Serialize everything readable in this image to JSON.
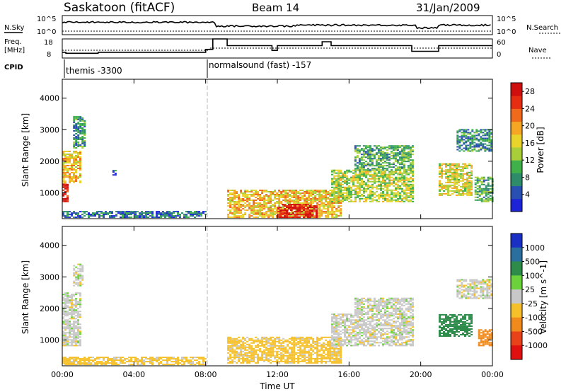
{
  "header": {
    "station": "Saskatoon (fitACF)",
    "beam": "Beam 14",
    "date": "31/Jan/2009"
  },
  "strip_panels": {
    "nsky": {
      "label": "N.Sky",
      "ticks": [
        "10^5",
        "10^0"
      ]
    },
    "nsearch": {
      "label": "N.Search",
      "ticks": [
        "10^5",
        "10^0"
      ]
    },
    "freq": {
      "label_line1": "Freq.",
      "label_line2": "[MHz]",
      "ticks": [
        "18",
        "8"
      ]
    },
    "nave": {
      "label": "Nave",
      "ticks": [
        "60",
        "0"
      ]
    },
    "cpid": {
      "label": "CPID",
      "segments": [
        {
          "start_hour": 0,
          "text": "themis -3300"
        },
        {
          "start_hour": 8,
          "text": "normalsound (fast) -157"
        }
      ]
    }
  },
  "chart_data": [
    {
      "type": "heatmap",
      "title": "",
      "xlabel": "",
      "ylabel": "Slant Range [km]",
      "x_ticks": [
        "00:00",
        "04:00",
        "08:00",
        "12:00",
        "16:00",
        "20:00",
        "00:00"
      ],
      "xlim_hours": [
        0,
        24
      ],
      "y_ticks": [
        1000,
        2000,
        3000,
        4000
      ],
      "ylim": [
        180,
        4600
      ],
      "colorbar": {
        "label": "Power [dB]",
        "ticks": [
          4,
          8,
          12,
          16,
          20,
          24,
          28
        ],
        "range": [
          0,
          30
        ],
        "colors": [
          "#1d24d8",
          "#2a4fb3",
          "#2e8c6a",
          "#3fb04a",
          "#a8cf3a",
          "#e8d42a",
          "#f5a623",
          "#ef6a1a",
          "#e52d12",
          "#cf0e0e"
        ]
      },
      "regions": [
        {
          "t0": 0.0,
          "t1": 0.3,
          "r0": 700,
          "r1": 1300,
          "v": 28
        },
        {
          "t0": 0.0,
          "t1": 1.0,
          "r0": 1300,
          "r1": 2300,
          "v": 18
        },
        {
          "t0": 0.6,
          "t1": 1.2,
          "r0": 2400,
          "r1": 3400,
          "v": 8
        },
        {
          "t0": 0.0,
          "t1": 8.0,
          "r0": 200,
          "r1": 400,
          "v": 6
        },
        {
          "t0": 2.8,
          "t1": 3.0,
          "r0": 1500,
          "r1": 1700,
          "v": 6
        },
        {
          "t0": 9.2,
          "t1": 15.5,
          "r0": 200,
          "r1": 1100,
          "v": 18
        },
        {
          "t0": 12.0,
          "t1": 14.2,
          "r0": 200,
          "r1": 650,
          "v": 28
        },
        {
          "t0": 15.0,
          "t1": 19.6,
          "r0": 700,
          "r1": 1700,
          "v": 14
        },
        {
          "t0": 16.3,
          "t1": 19.6,
          "r0": 1700,
          "r1": 2500,
          "v": 10
        },
        {
          "t0": 21.0,
          "t1": 22.8,
          "r0": 900,
          "r1": 1900,
          "v": 16
        },
        {
          "t0": 22.0,
          "t1": 24.0,
          "r0": 2300,
          "r1": 3000,
          "v": 8
        },
        {
          "t0": 23.0,
          "t1": 24.0,
          "r0": 700,
          "r1": 1500,
          "v": 10
        }
      ]
    },
    {
      "type": "heatmap",
      "title": "",
      "xlabel": "Time UT",
      "ylabel": "Slant Range [km]",
      "x_ticks": [
        "00:00",
        "04:00",
        "08:00",
        "12:00",
        "16:00",
        "20:00",
        "00:00"
      ],
      "xlim_hours": [
        0,
        24
      ],
      "y_ticks": [
        1000,
        2000,
        3000,
        4000
      ],
      "ylim": [
        180,
        4600
      ],
      "colorbar": {
        "label": "Velocity [m s^-1]",
        "ticks": [
          1000,
          500,
          100,
          25,
          -25,
          -100,
          -500,
          -1000
        ],
        "bands": [
          {
            "color": "#1a2fc4",
            "value": 1000
          },
          {
            "color": "#2b6f9e",
            "value": 700
          },
          {
            "color": "#2e8c4a",
            "value": 300
          },
          {
            "color": "#6bd23c",
            "value": 60
          },
          {
            "color": "#c8c8c8",
            "value": 0
          },
          {
            "color": "#f5c02a",
            "value": -60
          },
          {
            "color": "#f08a1c",
            "value": -300
          },
          {
            "color": "#e8421a",
            "value": -700
          },
          {
            "color": "#e01010",
            "value": -1000
          }
        ]
      },
      "regions": [
        {
          "t0": 0.0,
          "t1": 1.0,
          "r0": 800,
          "r1": 2500,
          "v": 0
        },
        {
          "t0": 0.6,
          "t1": 1.1,
          "r0": 2700,
          "r1": 3400,
          "v": 0
        },
        {
          "t0": 0.0,
          "t1": 8.0,
          "r0": 200,
          "r1": 450,
          "v": -60
        },
        {
          "t0": 9.2,
          "t1": 15.5,
          "r0": 250,
          "r1": 1100,
          "v": -60
        },
        {
          "t0": 15.0,
          "t1": 19.6,
          "r0": 800,
          "r1": 1800,
          "v": 0
        },
        {
          "t0": 16.3,
          "t1": 19.6,
          "r0": 1800,
          "r1": 2300,
          "v": 0
        },
        {
          "t0": 21.0,
          "t1": 22.8,
          "r0": 1100,
          "r1": 1800,
          "v": 300
        },
        {
          "t0": 22.0,
          "t1": 24.0,
          "r0": 2300,
          "r1": 2900,
          "v": 0
        },
        {
          "t0": 23.2,
          "t1": 24.0,
          "r0": 800,
          "r1": 1300,
          "v": -300
        }
      ]
    }
  ]
}
